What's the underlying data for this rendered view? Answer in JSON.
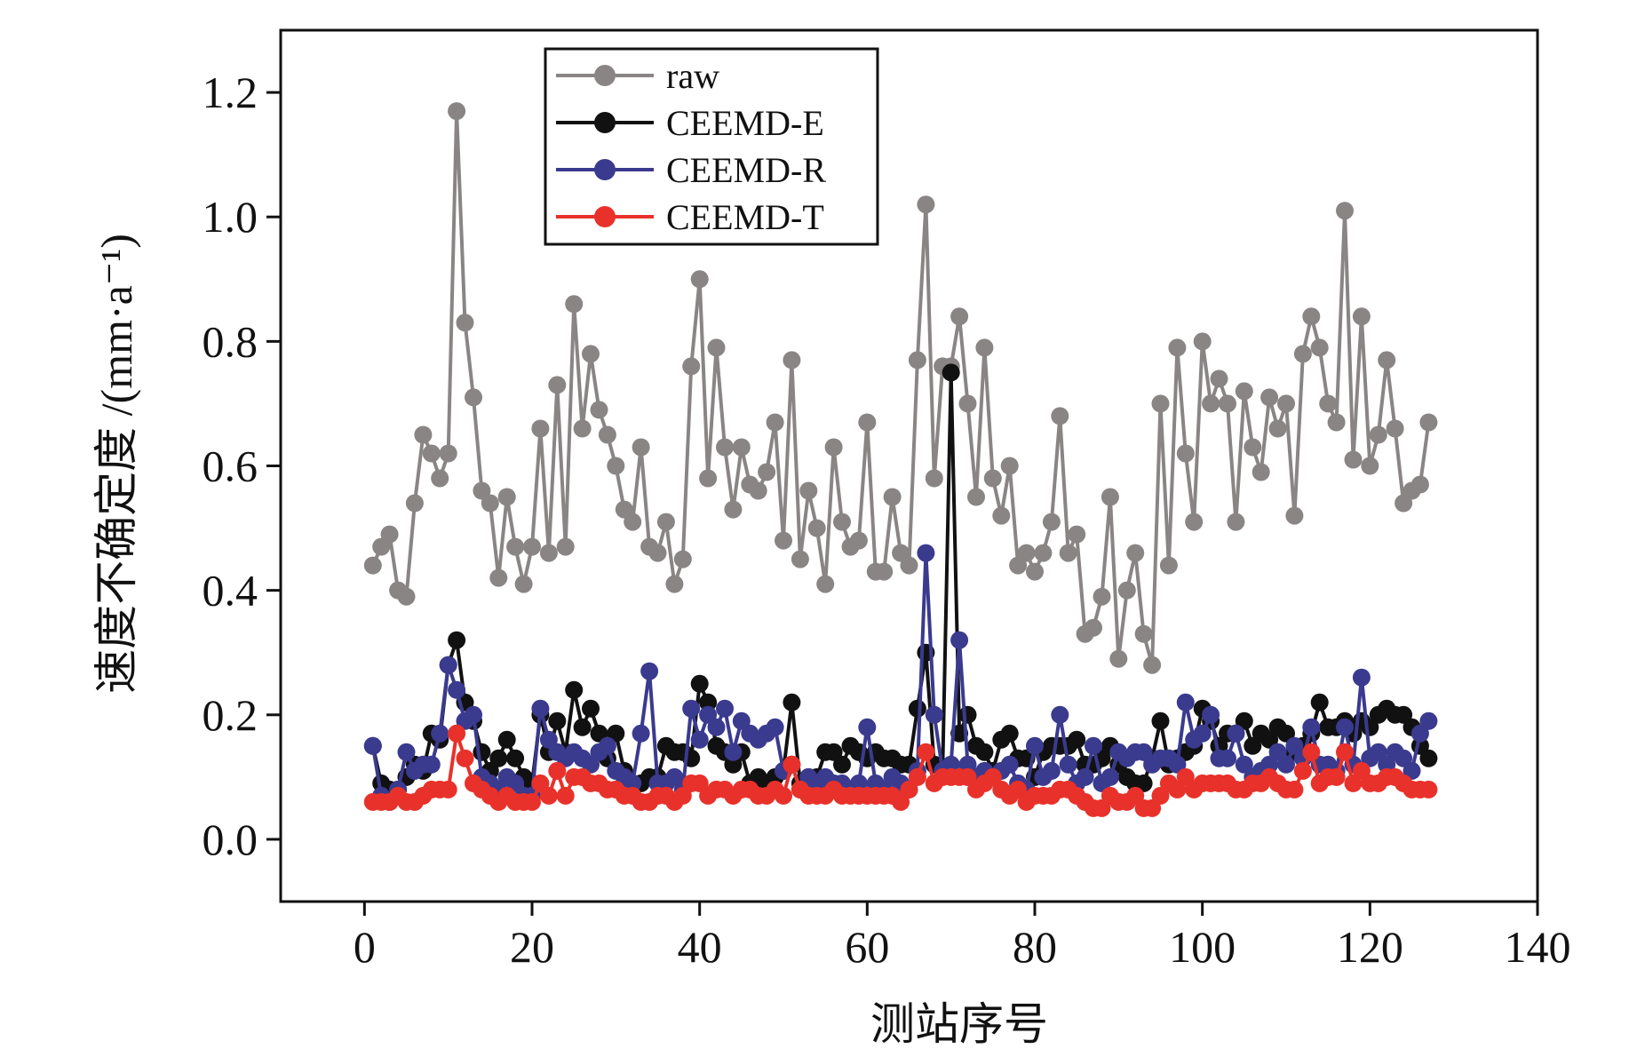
{
  "chart_data": {
    "type": "line",
    "xlabel": "测站序号",
    "ylabel": "速度不确定度 /(mm·a⁻¹)",
    "xlim": [
      -10,
      140
    ],
    "ylim": [
      -0.1,
      1.3
    ],
    "xticks": [
      0,
      20,
      40,
      60,
      80,
      100,
      120,
      140
    ],
    "xtick_labels": [
      "0",
      "20",
      "40",
      "60",
      "80",
      "100",
      "120",
      "140"
    ],
    "yticks": [
      0.0,
      0.2,
      0.4,
      0.6,
      0.8,
      1.0,
      1.2
    ],
    "ytick_labels": [
      "0.0",
      "0.2",
      "0.4",
      "0.6",
      "0.8",
      "1.0",
      "1.2"
    ],
    "grid": false,
    "legend_position": "top-left",
    "x": [
      1,
      2,
      3,
      4,
      5,
      6,
      7,
      8,
      9,
      10,
      11,
      12,
      13,
      14,
      15,
      16,
      17,
      18,
      19,
      20,
      21,
      22,
      23,
      24,
      25,
      26,
      27,
      28,
      29,
      30,
      31,
      32,
      33,
      34,
      35,
      36,
      37,
      38,
      39,
      40,
      41,
      42,
      43,
      44,
      45,
      46,
      47,
      48,
      49,
      50,
      51,
      52,
      53,
      54,
      55,
      56,
      57,
      58,
      59,
      60,
      61,
      62,
      63,
      64,
      65,
      66,
      67,
      68,
      69,
      70,
      71,
      72,
      73,
      74,
      75,
      76,
      77,
      78,
      79,
      80,
      81,
      82,
      83,
      84,
      85,
      86,
      87,
      88,
      89,
      90,
      91,
      92,
      93,
      94,
      95,
      96,
      97,
      98,
      99,
      100,
      101,
      102,
      103,
      104,
      105,
      106,
      107,
      108,
      109,
      110,
      111,
      112,
      113,
      114,
      115,
      116,
      117,
      118,
      119,
      120,
      121,
      122,
      123,
      124,
      125,
      126,
      127
    ],
    "series": [
      {
        "name": "raw",
        "color": "#8a8585",
        "values": [
          0.44,
          0.47,
          0.49,
          0.4,
          0.39,
          0.54,
          0.65,
          0.62,
          0.58,
          0.62,
          1.17,
          0.83,
          0.71,
          0.56,
          0.54,
          0.42,
          0.55,
          0.47,
          0.41,
          0.47,
          0.66,
          0.46,
          0.73,
          0.47,
          0.86,
          0.66,
          0.78,
          0.69,
          0.65,
          0.6,
          0.53,
          0.51,
          0.63,
          0.47,
          0.46,
          0.51,
          0.41,
          0.45,
          0.76,
          0.9,
          0.58,
          0.79,
          0.63,
          0.53,
          0.63,
          0.57,
          0.56,
          0.59,
          0.67,
          0.48,
          0.77,
          0.45,
          0.56,
          0.5,
          0.41,
          0.63,
          0.51,
          0.47,
          0.48,
          0.67,
          0.43,
          0.43,
          0.55,
          0.46,
          0.44,
          0.77,
          1.02,
          0.58,
          0.76,
          0.76,
          0.84,
          0.7,
          0.55,
          0.79,
          0.58,
          0.52,
          0.6,
          0.44,
          0.46,
          0.43,
          0.46,
          0.51,
          0.68,
          0.46,
          0.49,
          0.33,
          0.34,
          0.39,
          0.55,
          0.29,
          0.4,
          0.46,
          0.33,
          0.28,
          0.7,
          0.44,
          0.79,
          0.62,
          0.51,
          0.8,
          0.7,
          0.74,
          0.7,
          0.51,
          0.72,
          0.63,
          0.59,
          0.71,
          0.66,
          0.7,
          0.52,
          0.78,
          0.84,
          0.79,
          0.7,
          0.67,
          1.01,
          0.61,
          0.84,
          0.6,
          0.65,
          0.77,
          0.66,
          0.54,
          0.56,
          0.57,
          0.67
        ]
      },
      {
        "name": "CEEMD-E",
        "color": "#111111",
        "values": [
          0.15,
          0.09,
          0.08,
          0.08,
          0.1,
          0.12,
          0.11,
          0.17,
          0.16,
          0.28,
          0.32,
          0.22,
          0.19,
          0.14,
          0.11,
          0.13,
          0.16,
          0.13,
          0.1,
          0.09,
          0.2,
          0.14,
          0.19,
          0.14,
          0.24,
          0.18,
          0.21,
          0.17,
          0.13,
          0.17,
          0.11,
          0.09,
          0.09,
          0.1,
          0.1,
          0.15,
          0.14,
          0.14,
          0.13,
          0.25,
          0.22,
          0.15,
          0.14,
          0.12,
          0.14,
          0.09,
          0.1,
          0.09,
          0.1,
          0.11,
          0.22,
          0.09,
          0.1,
          0.1,
          0.14,
          0.14,
          0.12,
          0.15,
          0.14,
          0.13,
          0.14,
          0.13,
          0.13,
          0.12,
          0.12,
          0.21,
          0.3,
          0.12,
          0.11,
          0.75,
          0.17,
          0.2,
          0.15,
          0.14,
          0.11,
          0.16,
          0.17,
          0.13,
          0.13,
          0.1,
          0.14,
          0.15,
          0.15,
          0.15,
          0.16,
          0.12,
          0.12,
          0.13,
          0.15,
          0.12,
          0.1,
          0.09,
          0.09,
          0.13,
          0.19,
          0.12,
          0.13,
          0.14,
          0.15,
          0.21,
          0.19,
          0.15,
          0.17,
          0.17,
          0.19,
          0.15,
          0.17,
          0.16,
          0.18,
          0.17,
          0.14,
          0.15,
          0.17,
          0.22,
          0.18,
          0.18,
          0.19,
          0.17,
          0.19,
          0.18,
          0.2,
          0.21,
          0.2,
          0.2,
          0.18,
          0.15,
          0.13
        ]
      },
      {
        "name": "CEEMD-R",
        "color": "#3a3a8f",
        "values": [
          0.15,
          0.07,
          0.06,
          0.08,
          0.14,
          0.11,
          0.12,
          0.12,
          0.17,
          0.28,
          0.24,
          0.19,
          0.2,
          0.1,
          0.09,
          0.08,
          0.1,
          0.09,
          0.07,
          0.07,
          0.21,
          0.16,
          0.14,
          0.13,
          0.14,
          0.13,
          0.12,
          0.14,
          0.15,
          0.11,
          0.1,
          0.09,
          0.17,
          0.27,
          0.09,
          0.09,
          0.1,
          0.08,
          0.21,
          0.16,
          0.2,
          0.18,
          0.21,
          0.14,
          0.19,
          0.17,
          0.16,
          0.17,
          0.18,
          0.11,
          0.12,
          0.08,
          0.1,
          0.09,
          0.1,
          0.09,
          0.09,
          0.08,
          0.09,
          0.18,
          0.09,
          0.08,
          0.1,
          0.09,
          0.08,
          0.11,
          0.46,
          0.2,
          0.11,
          0.12,
          0.32,
          0.12,
          0.1,
          0.11,
          0.1,
          0.11,
          0.12,
          0.09,
          0.08,
          0.15,
          0.1,
          0.11,
          0.2,
          0.12,
          0.09,
          0.1,
          0.15,
          0.09,
          0.1,
          0.14,
          0.13,
          0.14,
          0.14,
          0.12,
          0.13,
          0.13,
          0.12,
          0.22,
          0.16,
          0.17,
          0.2,
          0.13,
          0.13,
          0.17,
          0.12,
          0.1,
          0.11,
          0.12,
          0.14,
          0.12,
          0.15,
          0.13,
          0.18,
          0.12,
          0.12,
          0.11,
          0.18,
          0.12,
          0.26,
          0.13,
          0.14,
          0.12,
          0.14,
          0.13,
          0.11,
          0.17,
          0.19
        ]
      },
      {
        "name": "CEEMD-T",
        "color": "#e8312a",
        "values": [
          0.06,
          0.06,
          0.06,
          0.07,
          0.06,
          0.06,
          0.07,
          0.08,
          0.08,
          0.08,
          0.17,
          0.13,
          0.09,
          0.08,
          0.07,
          0.06,
          0.07,
          0.06,
          0.06,
          0.06,
          0.09,
          0.07,
          0.11,
          0.07,
          0.1,
          0.1,
          0.09,
          0.09,
          0.08,
          0.08,
          0.07,
          0.07,
          0.06,
          0.06,
          0.07,
          0.07,
          0.06,
          0.07,
          0.09,
          0.09,
          0.07,
          0.08,
          0.08,
          0.07,
          0.08,
          0.08,
          0.07,
          0.07,
          0.08,
          0.07,
          0.12,
          0.08,
          0.07,
          0.07,
          0.07,
          0.08,
          0.07,
          0.07,
          0.07,
          0.07,
          0.07,
          0.07,
          0.07,
          0.06,
          0.08,
          0.1,
          0.14,
          0.09,
          0.1,
          0.1,
          0.1,
          0.1,
          0.08,
          0.09,
          0.1,
          0.08,
          0.07,
          0.08,
          0.06,
          0.07,
          0.07,
          0.07,
          0.08,
          0.08,
          0.07,
          0.06,
          0.05,
          0.05,
          0.07,
          0.06,
          0.06,
          0.07,
          0.05,
          0.05,
          0.07,
          0.09,
          0.08,
          0.1,
          0.08,
          0.09,
          0.09,
          0.09,
          0.09,
          0.08,
          0.08,
          0.09,
          0.09,
          0.1,
          0.09,
          0.08,
          0.08,
          0.11,
          0.14,
          0.09,
          0.1,
          0.1,
          0.14,
          0.09,
          0.11,
          0.09,
          0.09,
          0.1,
          0.1,
          0.09,
          0.08,
          0.08,
          0.08
        ]
      }
    ]
  }
}
